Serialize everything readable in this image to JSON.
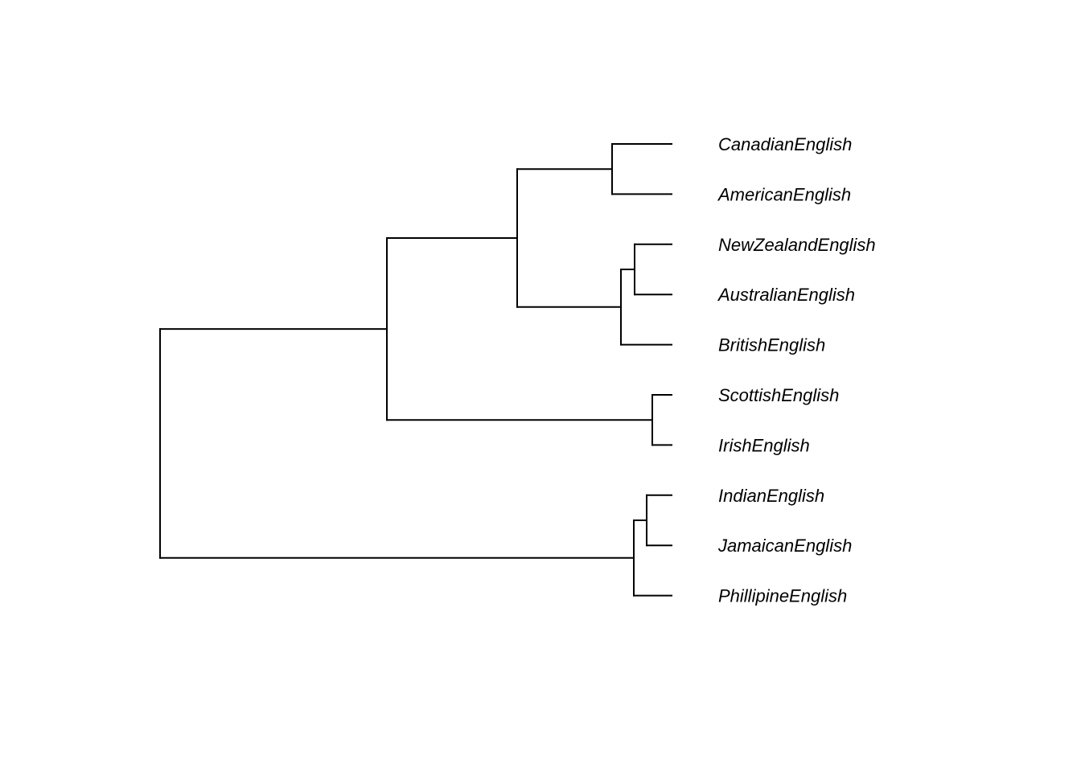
{
  "tree": {
    "children": [
      {
        "children": [
          {
            "children": [
              {
                "children": [
                  {
                    "label": "CanadianEnglish"
                  },
                  {
                    "label": "AmericanEnglish"
                  }
                ]
              },
              {
                "children": [
                  {
                    "children": [
                      {
                        "label": "NewZealandEnglish"
                      },
                      {
                        "label": "AustralianEnglish"
                      }
                    ]
                  },
                  {
                    "label": "BritishEnglish"
                  }
                ]
              }
            ]
          },
          {
            "children": [
              {
                "label": "ScottishEnglish"
              },
              {
                "label": "IrishEnglish"
              }
            ]
          }
        ]
      },
      {
        "children": [
          {
            "children": [
              {
                "label": "IndianEnglish"
              },
              {
                "label": "JamaicanEnglish"
              }
            ]
          },
          {
            "label": "PhillipineEnglish"
          }
        ]
      }
    ]
  },
  "colors": {
    "line": "#000000",
    "text": "#000000",
    "background": "#ffffff"
  }
}
